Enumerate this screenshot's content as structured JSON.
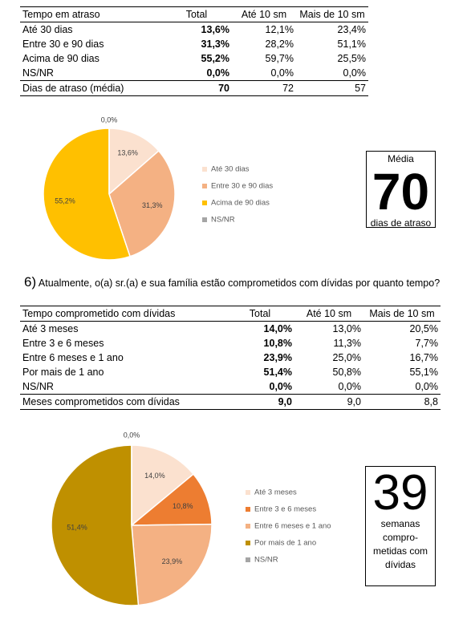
{
  "table1": {
    "header": [
      "Tempo em atraso",
      "Total",
      "Até 10 sm",
      "Mais de 10 sm"
    ],
    "rows": [
      [
        "Até 30 dias",
        "13,6%",
        "12,1%",
        "23,4%"
      ],
      [
        "Entre 30 e 90 dias",
        "31,3%",
        "28,2%",
        "51,1%"
      ],
      [
        "Acima de 90 dias",
        "55,2%",
        "59,7%",
        "25,5%"
      ],
      [
        "NS/NR",
        "0,0%",
        "0,0%",
        "0,0%"
      ]
    ],
    "footer": [
      "Dias de atraso (média)",
      "70",
      "72",
      "57"
    ]
  },
  "pie1": {
    "labels": [
      "Até 30 dias",
      "Entre 30 e 90 dias",
      "Acima de 90 dias",
      "NS/NR"
    ],
    "values": [
      13.6,
      31.3,
      55.2,
      0.0
    ],
    "value_labels": [
      "13,6%",
      "31,3%",
      "55,2%",
      "0,0%"
    ],
    "colors": [
      "#fbe1cf",
      "#f4b183",
      "#ffc000",
      "#a5a5a5"
    ]
  },
  "box1": {
    "title": "Média",
    "value": "70",
    "caption": [
      "dias de atraso"
    ]
  },
  "question": {
    "number": "6)",
    "text": "Atualmente, o(a) sr.(a) e sua família estão comprometidos com dívidas por quanto tempo?"
  },
  "table2": {
    "header": [
      "Tempo comprometido com dívidas",
      "Total",
      "Até 10 sm",
      "Mais de 10 sm"
    ],
    "rows": [
      [
        "Até 3 meses",
        "14,0%",
        "13,0%",
        "20,5%"
      ],
      [
        "Entre 3 e 6 meses",
        "10,8%",
        "11,3%",
        "7,7%"
      ],
      [
        "Entre 6 meses e 1 ano",
        "23,9%",
        "25,0%",
        "16,7%"
      ],
      [
        "Por mais de 1 ano",
        "51,4%",
        "50,8%",
        "55,1%"
      ],
      [
        "NS/NR",
        "0,0%",
        "0,0%",
        "0,0%"
      ]
    ],
    "footer": [
      "Meses comprometidos com dívidas",
      "9,0",
      "9,0",
      "8,8"
    ]
  },
  "pie2": {
    "labels": [
      "Até 3 meses",
      "Entre 3 e 6 meses",
      "Entre 6 meses e 1 ano",
      "Por mais de 1 ano",
      "NS/NR"
    ],
    "values": [
      14.0,
      10.8,
      23.9,
      51.4,
      0.0
    ],
    "value_labels": [
      "14,0%",
      "10,8%",
      "23,9%",
      "51,4%",
      "0,0%"
    ],
    "colors": [
      "#fbe1cf",
      "#ed7d31",
      "#f4b183",
      "#bf9000",
      "#a5a5a5"
    ]
  },
  "box2": {
    "value": "39",
    "caption": [
      "semanas",
      "compro-",
      "metidas com",
      "dívidas"
    ]
  }
}
